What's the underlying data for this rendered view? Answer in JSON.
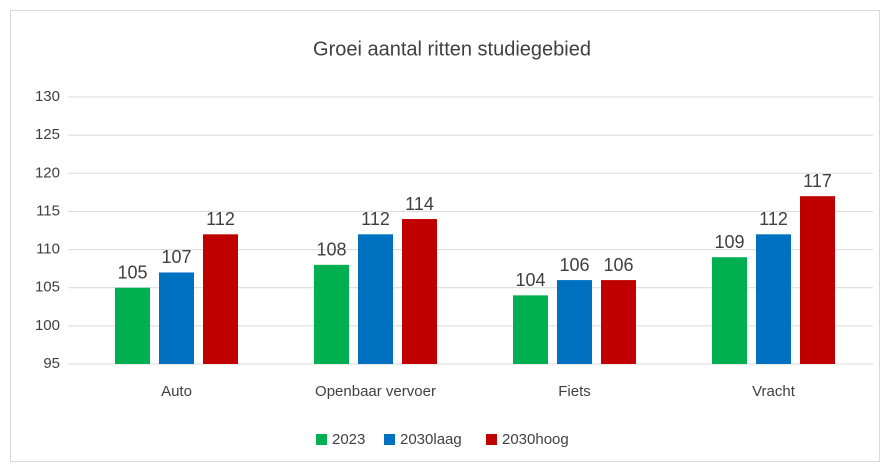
{
  "chart_data": {
    "type": "bar",
    "title": "Groei aantal ritten studiegebied",
    "categories": [
      "Auto",
      "Openbaar vervoer",
      "Fiets",
      "Vracht"
    ],
    "series": [
      {
        "name": "2023",
        "color": "#00b050",
        "values": [
          105,
          108,
          104,
          109
        ]
      },
      {
        "name": "2030laag",
        "color": "#0070c0",
        "values": [
          107,
          112,
          106,
          112
        ]
      },
      {
        "name": "2030hoog",
        "color": "#c00000",
        "values": [
          112,
          114,
          106,
          117
        ]
      }
    ],
    "ylim": [
      95,
      130
    ],
    "yticks": [
      95,
      100,
      105,
      110,
      115,
      120,
      125,
      130
    ],
    "grid": true,
    "legend": "bottom"
  }
}
